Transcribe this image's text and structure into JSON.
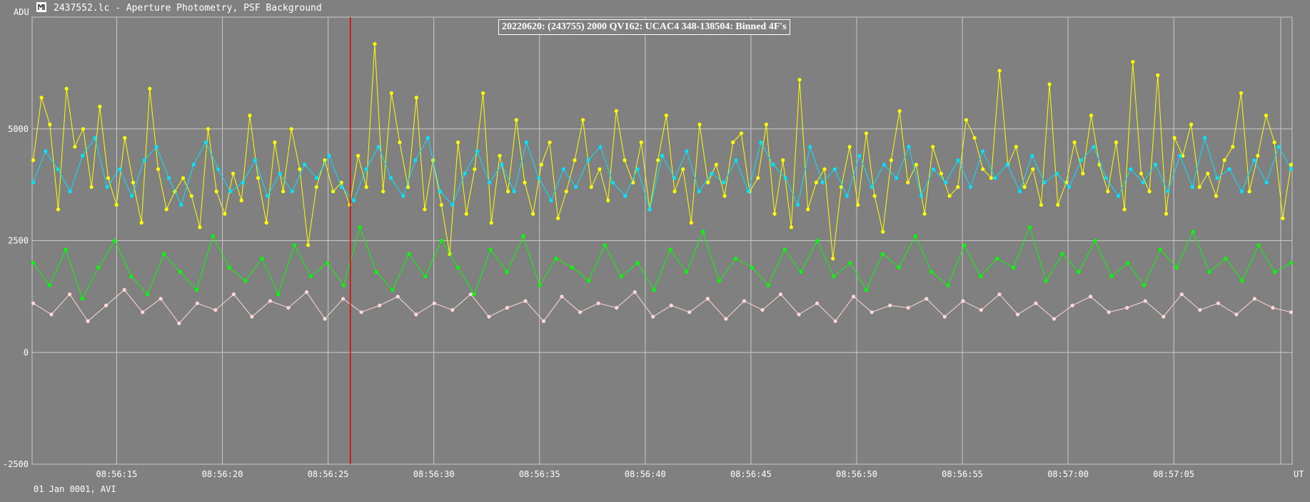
{
  "window": {
    "title": "2437552.lc - Aperture Photometry, PSF Background",
    "icon": "app-logo-icon"
  },
  "footer": {
    "date_text": "01 Jan 0001, AVI"
  },
  "colors": {
    "background": "#808080",
    "grid": "#c8c8c8",
    "cursor": "#e00000",
    "yellow": "#ffff00",
    "cyan": "#00e5ff",
    "green": "#00ff00",
    "pink": "#ffd7d7"
  },
  "chart_data": {
    "type": "line",
    "title": "20220620: (243755) 2000 QV162: UCAC4 348-138504: Binned 4F's",
    "ylabel": "ADU",
    "xlabel": "UT",
    "ylim": [
      -2500,
      7500
    ],
    "yticks": [
      {
        "value": 5000,
        "label": "5000"
      },
      {
        "value": 2500,
        "label": "2500"
      },
      {
        "value": 0,
        "label": "0"
      },
      {
        "value": -2500,
        "label": "-2500"
      }
    ],
    "xlim_seconds": [
      11.0,
      70.6
    ],
    "xticks": [
      {
        "value": 15,
        "label": "08:56:15"
      },
      {
        "value": 20,
        "label": "08:56:20"
      },
      {
        "value": 25,
        "label": "08:56:25"
      },
      {
        "value": 30,
        "label": "08:56:30"
      },
      {
        "value": 35,
        "label": "08:56:35"
      },
      {
        "value": 40,
        "label": "08:56:40"
      },
      {
        "value": 45,
        "label": "08:56:45"
      },
      {
        "value": 50,
        "label": "08:56:50"
      },
      {
        "value": 55,
        "label": "08:56:55"
      },
      {
        "value": 60,
        "label": "08:57:00"
      },
      {
        "value": 65,
        "label": "08:57:05"
      }
    ],
    "cursor_x": 26.05,
    "grid": true,
    "series": [
      {
        "key": "yellow",
        "levels": [
          4300,
          5700,
          5100,
          3200,
          5900,
          4600,
          5000,
          3700,
          5500,
          3900,
          3300,
          4800,
          3800,
          2900,
          5900,
          4100,
          3200,
          3600,
          3900,
          3500,
          2800,
          5000,
          3600,
          3100,
          4000,
          3400,
          5300,
          3900,
          2900,
          4700,
          3600,
          5000,
          4100,
          2400,
          3700,
          4300,
          3600,
          3800,
          3300,
          4400,
          3700,
          6900,
          3600,
          5800,
          4700,
          3700,
          5700,
          3200,
          4300,
          3300,
          2200,
          4700,
          3100,
          4100,
          5800,
          2900,
          4400,
          3600,
          5200,
          3800,
          3100,
          4200,
          4700,
          3000,
          3600,
          4300,
          5200,
          3700,
          4100,
          3400,
          5400,
          4300,
          3800,
          4700,
          3200,
          4300,
          5300,
          3600,
          4100,
          2900,
          5100,
          3800,
          4200,
          3500,
          4700,
          4900,
          3600,
          3900,
          5100,
          3100,
          4300,
          2800,
          6100,
          3200,
          3800,
          4100,
          2100,
          3700,
          4600,
          3300,
          4900,
          3500,
          2700,
          4300,
          5400,
          3800,
          4200,
          3100,
          4600,
          4000,
          3500,
          3700,
          5200,
          4800,
          4100,
          3900,
          6300,
          4200,
          4600,
          3700,
          4100,
          3300,
          6000,
          3300,
          3800,
          4700,
          4000,
          5300,
          4200,
          3600,
          4700,
          3200,
          6500,
          4000,
          3600,
          6200,
          3100,
          4800,
          4400,
          5100,
          3700,
          4000,
          3500,
          4300,
          4600,
          5800,
          3600,
          4400,
          5300,
          4700,
          3000,
          4200
        ]
      },
      {
        "key": "cyan",
        "levels": [
          3800,
          4500,
          4100,
          3600,
          4400,
          4800,
          3700,
          4100,
          3500,
          4300,
          4600,
          3900,
          3300,
          4200,
          4700,
          4100,
          3600,
          3800,
          4300,
          3500,
          4000,
          3600,
          4200,
          3900,
          4400,
          3700,
          3400,
          4100,
          4600,
          3900,
          3500,
          4300,
          4800,
          3600,
          3300,
          4000,
          4500,
          3800,
          4200,
          3600,
          4700,
          3900,
          3400,
          4100,
          3700,
          4300,
          4600,
          3800,
          3500,
          4100,
          3200,
          4400,
          3900,
          4500,
          3600,
          4000,
          3800,
          4300,
          3600,
          4700,
          4200,
          3900,
          3300,
          4600,
          3800,
          4100,
          3500,
          4400,
          3700,
          4200,
          3900,
          4600,
          3500,
          4100,
          3800,
          4300,
          3700,
          4500,
          3900,
          4200,
          3600,
          4400,
          3800,
          4000,
          3700,
          4300,
          4600,
          3900,
          3500,
          4100,
          3800,
          4200,
          3600,
          4400,
          3700,
          4800,
          3900,
          4100,
          3600,
          4300,
          3800,
          4600,
          4100
        ]
      },
      {
        "key": "green",
        "levels": [
          2000,
          1500,
          2300,
          1200,
          1900,
          2500,
          1700,
          1300,
          2200,
          1800,
          1400,
          2600,
          1900,
          1600,
          2100,
          1300,
          2400,
          1700,
          2000,
          1500,
          2800,
          1800,
          1400,
          2200,
          1700,
          2500,
          1900,
          1300,
          2300,
          1800,
          2600,
          1500,
          2100,
          1900,
          1600,
          2400,
          1700,
          2000,
          1400,
          2300,
          1800,
          2700,
          1600,
          2100,
          1900,
          1500,
          2300,
          1800,
          2500,
          1700,
          2000,
          1400,
          2200,
          1900,
          2600,
          1800,
          1500,
          2400,
          1700,
          2100,
          1900,
          2800,
          1600,
          2200,
          1800,
          2500,
          1700,
          2000,
          1500,
          2300,
          1900,
          2700,
          1800,
          2100,
          1600,
          2400,
          1800,
          2000
        ]
      },
      {
        "key": "pink",
        "levels": [
          1100,
          850,
          1300,
          700,
          1050,
          1400,
          900,
          1200,
          650,
          1100,
          950,
          1300,
          800,
          1150,
          1000,
          1350,
          750,
          1200,
          900,
          1050,
          1250,
          850,
          1100,
          950,
          1300,
          800,
          1000,
          1150,
          700,
          1250,
          900,
          1100,
          1000,
          1350,
          800,
          1050,
          900,
          1200,
          750,
          1150,
          950,
          1300,
          850,
          1100,
          700,
          1250,
          900,
          1050,
          1000,
          1200,
          800,
          1150,
          950,
          1300,
          850,
          1100,
          750,
          1050,
          1250,
          900,
          1000,
          1150,
          800,
          1300,
          950,
          1100,
          850,
          1200,
          1000,
          900
        ]
      }
    ]
  }
}
